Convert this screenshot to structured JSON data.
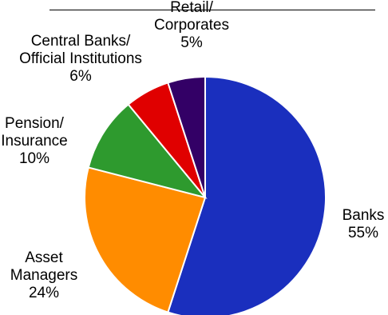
{
  "chart_data": {
    "type": "pie",
    "start_angle_deg": 0,
    "direction": "clockwise",
    "slices": [
      {
        "name": "Banks",
        "label_lines": [
          "Banks"
        ],
        "pct_label": "55%",
        "value": 55,
        "color": "#1a2fbe"
      },
      {
        "name": "Asset Managers",
        "label_lines": [
          "Asset",
          "Managers"
        ],
        "pct_label": "24%",
        "value": 24,
        "color": "#ff8c00"
      },
      {
        "name": "Pension/ Insurance",
        "label_lines": [
          "Pension/",
          "Insurance"
        ],
        "pct_label": "10%",
        "value": 10,
        "color": "#2e9a2e"
      },
      {
        "name": "Central Banks/ Official Institutions",
        "label_lines": [
          "Central Banks/",
          "Official Institutions"
        ],
        "pct_label": "6%",
        "value": 6,
        "color": "#e00000"
      },
      {
        "name": "Retail/ Corporates",
        "label_lines": [
          "Retail/",
          "Corporates"
        ],
        "pct_label": "5%",
        "value": 5,
        "color": "#330066"
      }
    ]
  }
}
